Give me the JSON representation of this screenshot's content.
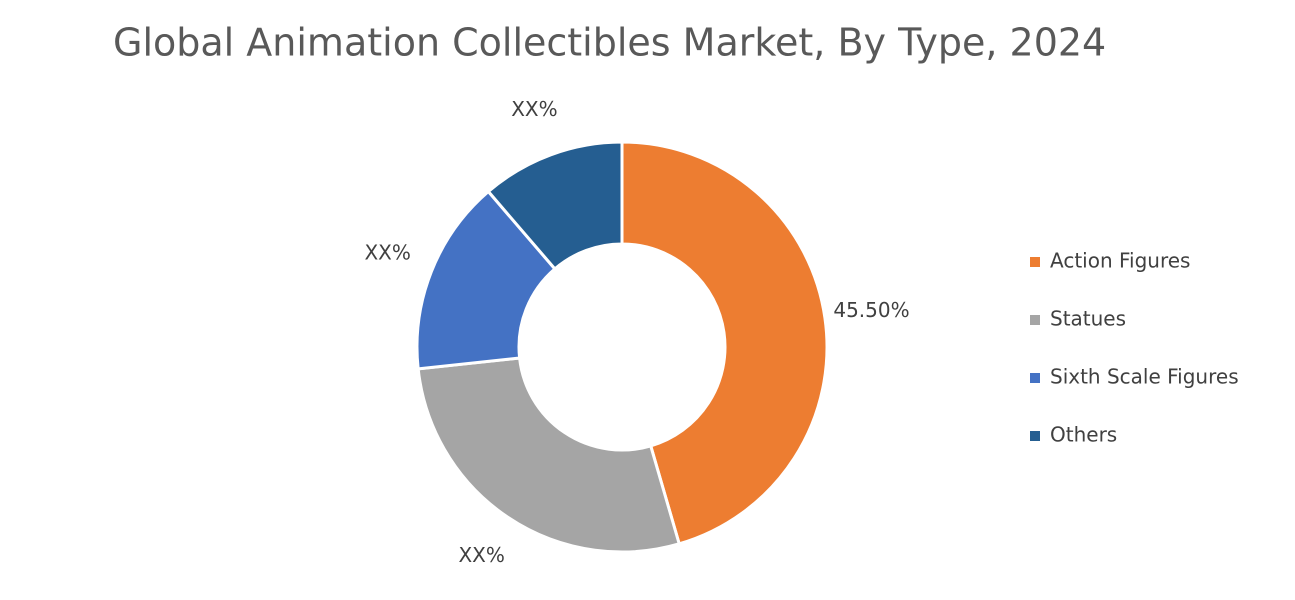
{
  "chart_data": {
    "type": "donut",
    "title": "Global Animation Collectibles Market, By Type, 2024",
    "categories": [
      "Action Figures",
      "Statues",
      "Sixth Scale Figures",
      "Others"
    ],
    "values": [
      45.5,
      27.8,
      15.4,
      11.3
    ],
    "value_labels": [
      "45.50%",
      "XX%",
      "XX%",
      "XX%"
    ],
    "colors": [
      "#ED7D31",
      "#A5A5A5",
      "#4472C4",
      "#255E91"
    ],
    "legend": "right"
  }
}
